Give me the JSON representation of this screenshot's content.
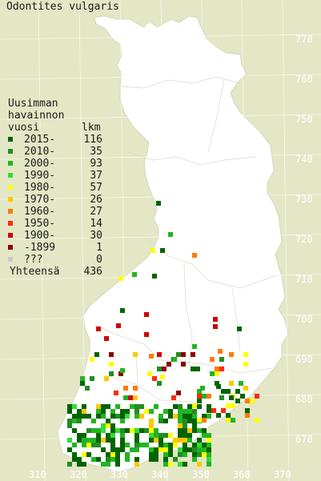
{
  "title": "Odontites vulgaris",
  "legend": {
    "header_line1": "Uusimman",
    "header_line2": "havainnon",
    "header_col1": "vuosi",
    "header_col2": "lkm",
    "rows": [
      {
        "label": "2015-",
        "count": "116",
        "color": "#006400"
      },
      {
        "label": "2010-",
        "count": "35",
        "color": "#238b23"
      },
      {
        "label": "2000-",
        "count": "93",
        "color": "#22b422"
      },
      {
        "label": "1990-",
        "count": "37",
        "color": "#33dd33"
      },
      {
        "label": "1980-",
        "count": "57",
        "color": "#ffff00"
      },
      {
        "label": "1970-",
        "count": "26",
        "color": "#ffc800"
      },
      {
        "label": "1960-",
        "count": "27",
        "color": "#ff7a00"
      },
      {
        "label": "1950-",
        "count": "14",
        "color": "#ff2a00"
      },
      {
        "label": "1900-",
        "count": "30",
        "color": "#d00000"
      },
      {
        "label": "-1899",
        "count": "1",
        "color": "#8b0000"
      },
      {
        "label": "???",
        "count": "0",
        "color": "#c8c8c8"
      }
    ],
    "total_label": "Yhteensä",
    "total_count": "436"
  },
  "y_labels": [
    "770",
    "760",
    "750",
    "740",
    "730",
    "720",
    "710",
    "700",
    "690",
    "680",
    "670"
  ],
  "x_labels": [
    "310",
    "320",
    "330",
    "340",
    "350",
    "360",
    "370"
  ]
}
